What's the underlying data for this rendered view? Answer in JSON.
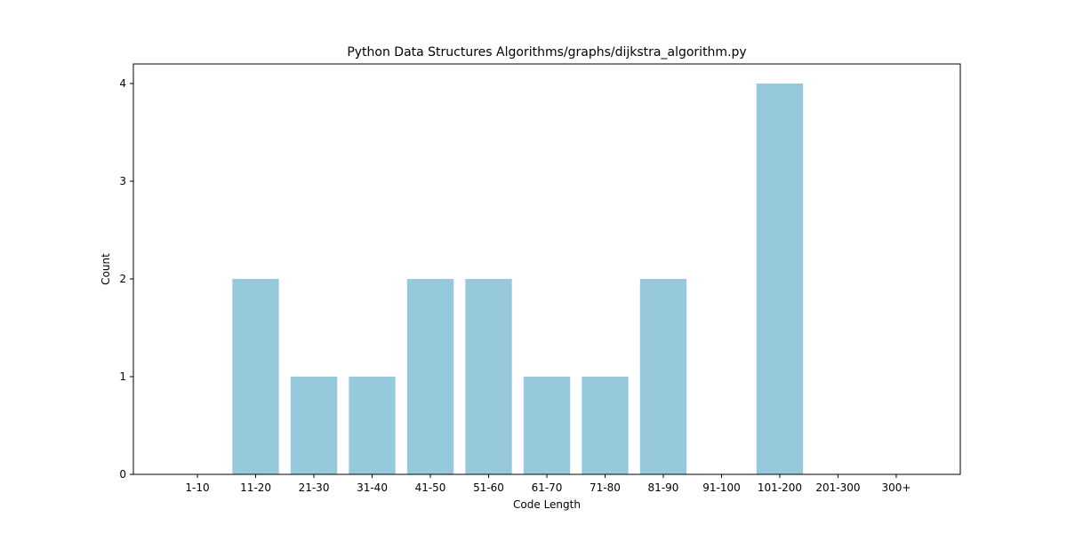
{
  "chart_data": {
    "type": "bar",
    "title": "Python Data Structures Algorithms/graphs/dijkstra_algorithm.py",
    "xlabel": "Code Length",
    "ylabel": "Count",
    "categories": [
      "1-10",
      "11-20",
      "21-30",
      "31-40",
      "41-50",
      "51-60",
      "61-70",
      "71-80",
      "81-90",
      "91-100",
      "101-200",
      "201-300",
      "300+"
    ],
    "values": [
      0,
      2,
      1,
      1,
      2,
      2,
      1,
      1,
      2,
      0,
      4,
      0,
      0
    ],
    "ylim": [
      0,
      4.2
    ],
    "yticks": [
      0,
      1,
      2,
      3,
      4
    ],
    "bar_color": "#96c9dc",
    "grid": false,
    "legend": "none"
  }
}
